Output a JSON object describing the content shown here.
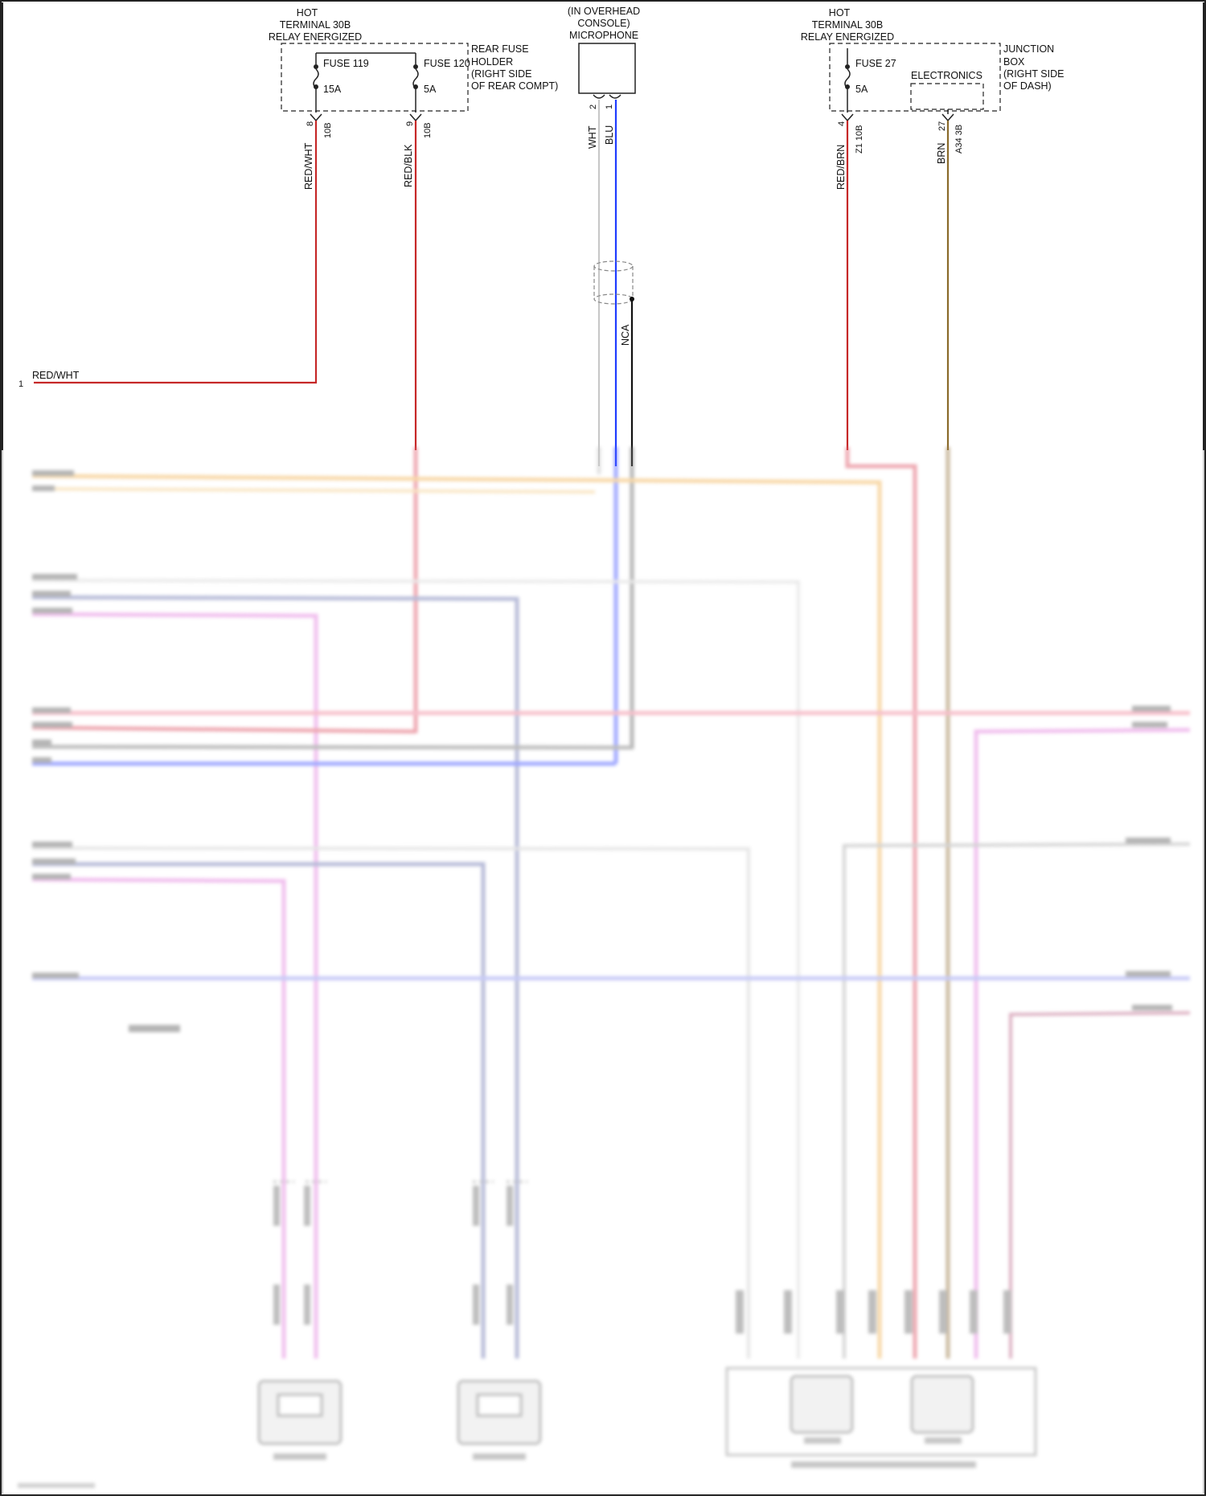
{
  "fuse_holder_rear": {
    "header": [
      "HOT",
      "TERMINAL 30B",
      "RELAY ENERGIZED"
    ],
    "name": [
      "REAR FUSE",
      "HOLDER",
      "(RIGHT SIDE",
      "OF REAR COMPT)"
    ],
    "fuse119": {
      "name": "FUSE 119",
      "rating": "15A",
      "pin": "8",
      "connector": "10B",
      "wire": "RED/WHT"
    },
    "fuse120": {
      "name": "FUSE 120",
      "rating": "5A",
      "pin": "9",
      "connector": "10B",
      "wire": "RED/BLK"
    }
  },
  "microphone": {
    "label": [
      "(IN OVERHEAD",
      "CONSOLE)",
      "MICROPHONE"
    ],
    "pin2": "2",
    "pin1": "1",
    "wire_left": "WHT",
    "wire_right": "BLU",
    "shield": "NCA"
  },
  "junction_box": {
    "header": [
      "HOT",
      "TERMINAL 30B",
      "RELAY ENERGIZED"
    ],
    "name": [
      "JUNCTION",
      "BOX",
      "(RIGHT SIDE",
      "OF DASH)"
    ],
    "fuse27": {
      "name": "FUSE 27",
      "rating": "5A",
      "pin": "4",
      "connector": "Z1 10B",
      "wire": "RED/BRN"
    },
    "electronics": {
      "name": "ELECTRONICS",
      "pin": "27",
      "connector": "A34 3B",
      "wire": "BRN"
    }
  },
  "left_input": {
    "pin": "1",
    "wire": "RED/WHT"
  },
  "colors": {
    "red": "#c62828",
    "blue": "#1e3cff",
    "white_wire": "#c8c8c8",
    "black": "#111111",
    "brown": "#8a6a2a",
    "orange_wire": "#f2b860",
    "pink_wire": "#e58ae0",
    "pink_red_wire": "#f08aa0",
    "slate_wire": "#7c84b8",
    "grey_wire": "#a0a0a0",
    "lightblue_wire": "#9aa0f0"
  }
}
